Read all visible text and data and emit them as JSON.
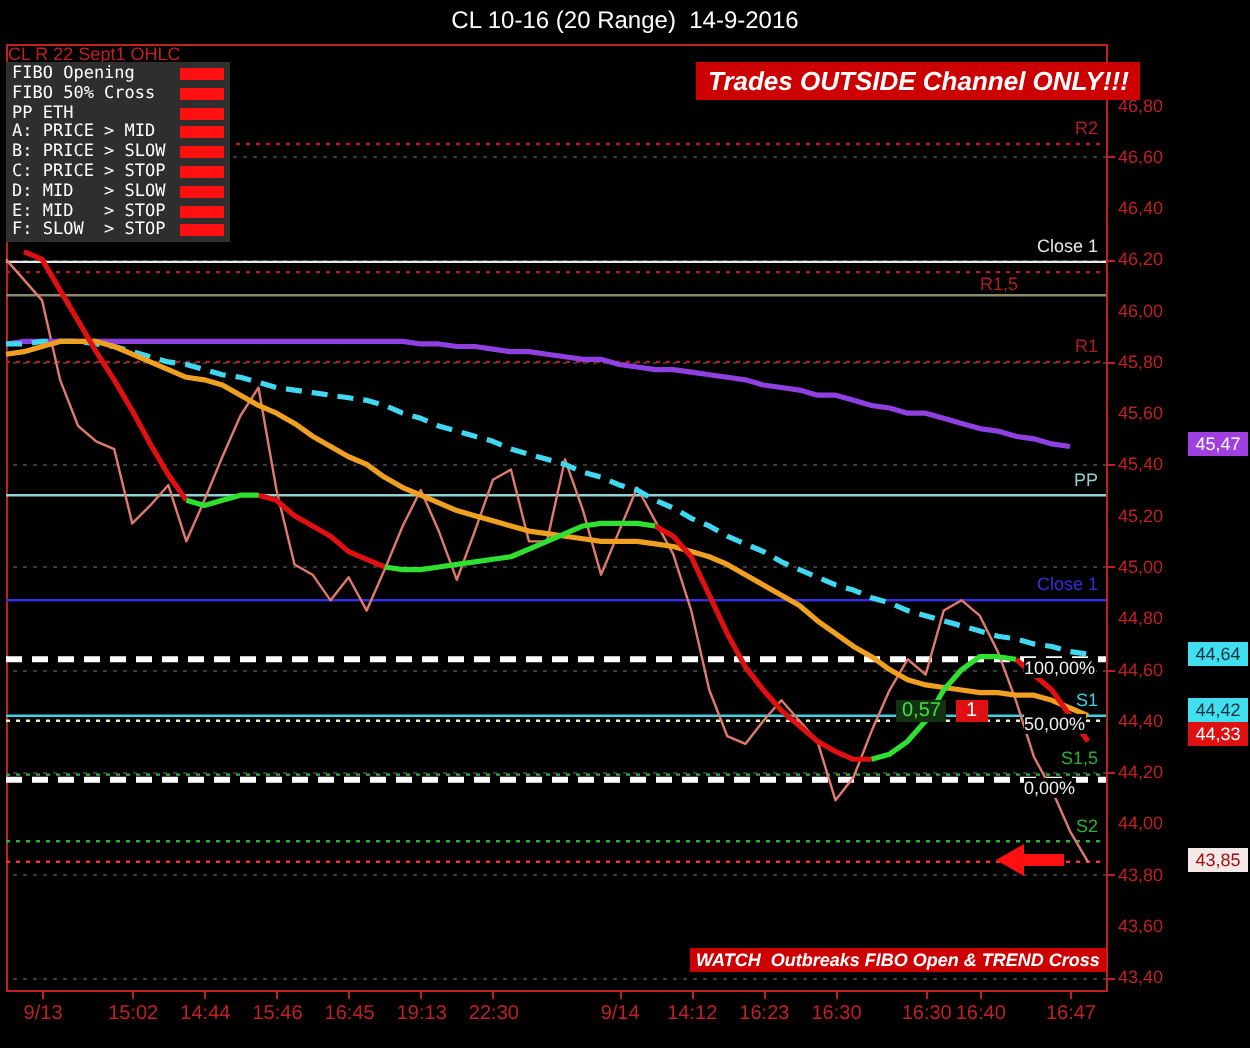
{
  "chart_data": {
    "type": "line",
    "title": "CL 10-16 (20 Range)  14-9-2016",
    "subtitle": "CL R 22 Sept1 OHLC",
    "categories": [
      null,
      null,
      "9/13",
      null,
      null,
      null,
      null,
      "15:02",
      null,
      null,
      null,
      "14:44",
      null,
      null,
      null,
      "15:46",
      null,
      null,
      null,
      "16:45",
      null,
      null,
      null,
      "19:13",
      null,
      null,
      null,
      "22:30",
      null,
      null,
      null,
      null,
      null,
      null,
      "9/14",
      null,
      null,
      null,
      "14:12",
      null,
      null,
      null,
      "16:23",
      null,
      null,
      null,
      "16:30",
      null,
      null,
      null,
      null,
      "16:30",
      null,
      null,
      "16:40",
      null,
      null,
      null,
      null,
      "16:47",
      null,
      null
    ],
    "series": [
      {
        "color": "#e07a6a",
        "values": [
          46.2,
          46.12,
          46.04,
          45.73,
          45.55,
          45.49,
          45.46,
          45.17,
          45.24,
          45.32,
          45.1,
          45.26,
          45.43,
          45.59,
          45.7,
          45.3,
          45.01,
          44.97,
          44.87,
          44.96,
          44.83,
          44.99,
          45.16,
          45.3,
          45.14,
          44.95,
          45.14,
          45.34,
          45.38,
          45.1,
          45.1,
          45.42,
          45.22,
          44.97,
          45.14,
          45.31,
          45.18,
          45.05,
          44.83,
          44.52,
          44.34,
          44.31,
          44.4,
          44.48,
          44.4,
          44.32,
          44.09,
          44.18,
          44.36,
          44.52,
          44.64,
          44.58,
          44.83,
          44.87,
          44.81,
          44.67,
          44.48,
          44.26,
          44.13,
          43.97,
          43.85,
          null
        ]
      },
      {
        "color": "#9040e0",
        "values": [
          45.87,
          45.88,
          45.88,
          45.88,
          45.88,
          45.88,
          45.88,
          45.88,
          45.88,
          45.88,
          45.88,
          45.88,
          45.88,
          45.88,
          45.88,
          45.88,
          45.88,
          45.88,
          45.88,
          45.88,
          45.88,
          45.88,
          45.88,
          45.87,
          45.87,
          45.86,
          45.86,
          45.85,
          45.84,
          45.84,
          45.83,
          45.82,
          45.81,
          45.81,
          45.79,
          45.78,
          45.77,
          45.77,
          45.76,
          45.75,
          45.74,
          45.73,
          45.71,
          45.7,
          45.69,
          45.67,
          45.67,
          45.65,
          45.63,
          45.62,
          45.6,
          45.6,
          45.58,
          45.56,
          45.54,
          45.53,
          45.51,
          45.5,
          45.48,
          45.47,
          null,
          null
        ]
      },
      {
        "color": "#40d8f0",
        "line_style": "dashed",
        "values": [
          45.87,
          45.87,
          45.88,
          45.88,
          45.88,
          45.87,
          45.86,
          45.84,
          45.82,
          45.8,
          45.79,
          45.77,
          45.75,
          45.74,
          45.72,
          45.7,
          45.69,
          45.68,
          45.67,
          45.66,
          45.65,
          45.63,
          45.6,
          45.58,
          45.55,
          45.53,
          45.51,
          45.49,
          45.46,
          45.44,
          45.42,
          45.4,
          45.37,
          45.35,
          45.32,
          45.3,
          45.26,
          45.23,
          45.19,
          45.16,
          45.12,
          45.09,
          45.06,
          45.02,
          44.99,
          44.96,
          44.93,
          44.91,
          44.88,
          44.86,
          44.83,
          44.81,
          44.79,
          44.77,
          44.75,
          44.73,
          44.72,
          44.7,
          44.69,
          44.67,
          44.66,
          null
        ]
      },
      {
        "color": "#f0a020",
        "values": [
          45.83,
          45.84,
          45.86,
          45.88,
          45.88,
          45.88,
          45.86,
          45.83,
          45.8,
          45.77,
          45.74,
          45.73,
          45.71,
          45.67,
          45.63,
          45.6,
          45.56,
          45.51,
          45.47,
          45.43,
          45.4,
          45.35,
          45.31,
          45.28,
          45.25,
          45.22,
          45.2,
          45.18,
          45.16,
          45.14,
          45.13,
          45.12,
          45.11,
          45.1,
          45.1,
          45.1,
          45.09,
          45.08,
          45.06,
          45.04,
          45.01,
          44.97,
          44.93,
          44.89,
          44.85,
          44.79,
          44.74,
          44.69,
          44.65,
          44.6,
          44.56,
          44.54,
          44.53,
          44.52,
          44.51,
          44.51,
          44.5,
          44.5,
          44.48,
          44.45,
          44.42,
          null
        ]
      },
      {
        "color": "#e01010",
        "values": [
          null,
          46.23,
          46.2,
          46.08,
          45.96,
          45.84,
          45.73,
          45.61,
          45.48,
          45.36,
          45.26,
          null,
          null,
          null,
          45.28,
          45.26,
          45.2,
          45.16,
          45.12,
          45.06,
          45.03,
          45.0,
          null,
          null,
          null,
          null,
          null,
          null,
          null,
          null,
          null,
          null,
          null,
          null,
          null,
          null,
          45.16,
          45.12,
          45.04,
          44.89,
          44.74,
          44.61,
          44.52,
          44.44,
          44.38,
          44.32,
          44.28,
          44.25,
          44.25,
          null,
          null,
          null,
          null,
          null,
          null,
          null,
          44.64,
          44.58,
          44.52,
          44.42,
          44.32,
          null
        ]
      },
      {
        "color": "#30e030",
        "values": [
          null,
          null,
          null,
          null,
          null,
          null,
          null,
          null,
          null,
          null,
          45.26,
          45.24,
          45.26,
          45.28,
          45.28,
          null,
          null,
          null,
          null,
          null,
          null,
          45.0,
          44.99,
          44.99,
          45.0,
          45.01,
          45.02,
          45.03,
          45.04,
          45.07,
          45.1,
          45.13,
          45.16,
          45.17,
          45.17,
          45.17,
          45.16,
          null,
          null,
          null,
          null,
          null,
          null,
          null,
          null,
          null,
          null,
          null,
          44.25,
          44.27,
          44.32,
          44.4,
          44.52,
          44.6,
          44.65,
          44.65,
          44.64,
          null,
          null,
          null,
          null,
          null
        ]
      }
    ],
    "ylim": [
      43.35,
      47.04
    ],
    "yticks": [
      {
        "value": 43.4,
        "label": "43,40"
      },
      {
        "value": 43.6,
        "label": "43,60"
      },
      {
        "value": 43.8,
        "label": "43,80"
      },
      {
        "value": 44.0,
        "label": "44,00"
      },
      {
        "value": 44.2,
        "label": "44,20"
      },
      {
        "value": 44.4,
        "label": "44,40"
      },
      {
        "value": 44.6,
        "label": "44,60"
      },
      {
        "value": 44.8,
        "label": "44,80"
      },
      {
        "value": 45.0,
        "label": "45,00"
      },
      {
        "value": 45.2,
        "label": "45,20"
      },
      {
        "value": 45.4,
        "label": "45,40"
      },
      {
        "value": 45.6,
        "label": "45,60"
      },
      {
        "value": 45.8,
        "label": "45,80"
      },
      {
        "value": 46.0,
        "label": "46,00"
      },
      {
        "value": 46.2,
        "label": "46,20"
      },
      {
        "value": 46.4,
        "label": "46,40"
      },
      {
        "value": 46.6,
        "label": "46,60"
      },
      {
        "value": 46.8,
        "label": "46,80"
      }
    ],
    "grid": "y",
    "ref_lines": [
      {
        "axis": "y",
        "value": 46.65,
        "label": "R2",
        "color": "#b02020",
        "line_style": "dotted"
      },
      {
        "axis": "y",
        "value": 46.19,
        "label": "Close 1",
        "color": "#e8e8e8",
        "line_style": "solid"
      },
      {
        "axis": "y",
        "value": 46.15,
        "label": "R1,5",
        "color": "#b02020",
        "line_style": "dotted"
      },
      {
        "axis": "y",
        "value": 46.06,
        "color": "#8a8a6a",
        "line_style": "solid"
      },
      {
        "axis": "y",
        "value": 45.8,
        "label": "R1",
        "color": "#b02020",
        "line_style": "dotted"
      },
      {
        "axis": "y",
        "value": 45.28,
        "label": "PP",
        "color": "#8fd3d3",
        "line_style": "solid"
      },
      {
        "axis": "y",
        "value": 44.87,
        "label": "Close 1",
        "color": "#3030e0",
        "line_style": "solid"
      },
      {
        "axis": "y",
        "value": 44.64,
        "color": "#ffffff",
        "line_style": "dashed"
      },
      {
        "axis": "y",
        "value": 44.42,
        "label": "S1",
        "color": "#40d0e0",
        "line_style": "solid"
      },
      {
        "axis": "y",
        "value": 44.4,
        "color": "#f0f0c0",
        "line_style": "dotted"
      },
      {
        "axis": "y",
        "value": 44.19,
        "label": "S1,5",
        "color": "#30b030",
        "line_style": "dotted"
      },
      {
        "axis": "y",
        "value": 44.17,
        "color": "#ffffff",
        "line_style": "dashed"
      },
      {
        "axis": "y",
        "value": 43.93,
        "label": "S2",
        "color": "#30b030",
        "line_style": "dotted"
      },
      {
        "axis": "y",
        "value": 43.85,
        "color": "#ff3030",
        "line_style": "dotted"
      }
    ],
    "annotations": [
      "FIBO Opening",
      "FIBO 50% Cross",
      "PP ETH",
      "A: PRICE > MID",
      "B: PRICE > SLOW",
      "C: PRICE > STOP",
      "D: MID   > SLOW",
      "E: MID   > STOP",
      "F: SLOW  > STOP",
      "Trades OUTSIDE Channel ONLY!!!",
      "WATCH  Outbreaks FIBO Open & TREND Cross",
      "0,57",
      "1",
      "100,00%",
      "50,00%",
      "0,00%",
      "45,47",
      "44,64",
      "44,42",
      "44,33",
      "43,85"
    ]
  }
}
